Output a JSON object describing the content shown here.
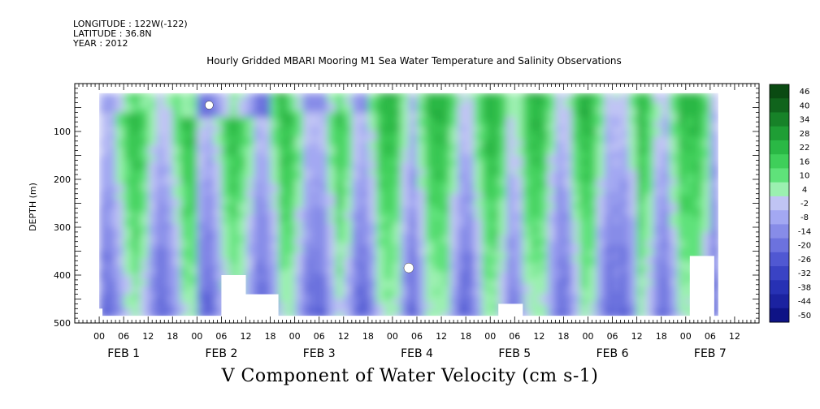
{
  "header": {
    "longitude": "LONGITUDE : 122W(-122)",
    "latitude": "LATITUDE : 36.8N",
    "year": "YEAR : 2012",
    "plot_title": "Hourly Gridded MBARI Mooring M1 Sea Water Temperature and Salinity Observations"
  },
  "footer": {
    "variable_title": "V Component of Water Velocity (cm s-1)"
  },
  "chart_data": {
    "type": "heatmap",
    "title": "Hourly Gridded MBARI Mooring M1 Sea Water Temperature and Salinity Observations",
    "xlabel": "",
    "ylabel": "DEPTH (m)",
    "x_tick_labels": [
      "00",
      "06",
      "12",
      "18",
      "00",
      "06",
      "12",
      "18",
      "00",
      "06",
      "12",
      "18",
      "00",
      "06",
      "12",
      "18",
      "00",
      "06",
      "12",
      "18",
      "00",
      "06",
      "12",
      "18",
      "00",
      "06",
      "12"
    ],
    "date_labels": [
      "FEB  1",
      "FEB  2",
      "FEB  3",
      "FEB  4",
      "FEB  5",
      "FEB  6",
      "FEB  7"
    ],
    "y_ticks": [
      100,
      200,
      300,
      400,
      500
    ],
    "ylim": [
      500,
      0
    ],
    "data_depth_range_m": [
      20,
      485
    ],
    "colorbar": {
      "levels": [
        46,
        40,
        34,
        28,
        22,
        16,
        10,
        4,
        -2,
        -8,
        -14,
        -20,
        -26,
        -32,
        -38,
        -44,
        -50
      ],
      "colors": [
        "#0a4a12",
        "#10641c",
        "#178228",
        "#1f9e35",
        "#2ab845",
        "#3fcf5a",
        "#5fe27a",
        "#9bf0b0",
        "#c0c4f4",
        "#a3a8f2",
        "#878ce8",
        "#6c72de",
        "#5058d2",
        "#3a43c4",
        "#2731b4",
        "#1b22a0",
        "#0e1386"
      ]
    },
    "columns": [
      {
        "day": 1,
        "hour_range": [
          6,
          24
        ],
        "pattern": "weak negative upper, positive mid-column"
      },
      {
        "day": 2,
        "hour_range": [
          0,
          24
        ],
        "pattern": "strong positive upper-mid column"
      },
      {
        "day": 3,
        "hour_range": [
          0,
          24
        ],
        "pattern": "alternating positive/negative bands"
      },
      {
        "day": 4,
        "hour_range": [
          0,
          24
        ],
        "pattern": "positive upper, negative deep"
      },
      {
        "day": 5,
        "hour_range": [
          0,
          24
        ],
        "pattern": "alternating bands"
      },
      {
        "day": 6,
        "hour_range": [
          0,
          24
        ],
        "pattern": "strong positive upper column"
      },
      {
        "day": 7,
        "hour_range": [
          0,
          14
        ],
        "pattern": "positive upper, negative deep"
      }
    ],
    "grid": false,
    "legend_placement": "right"
  }
}
